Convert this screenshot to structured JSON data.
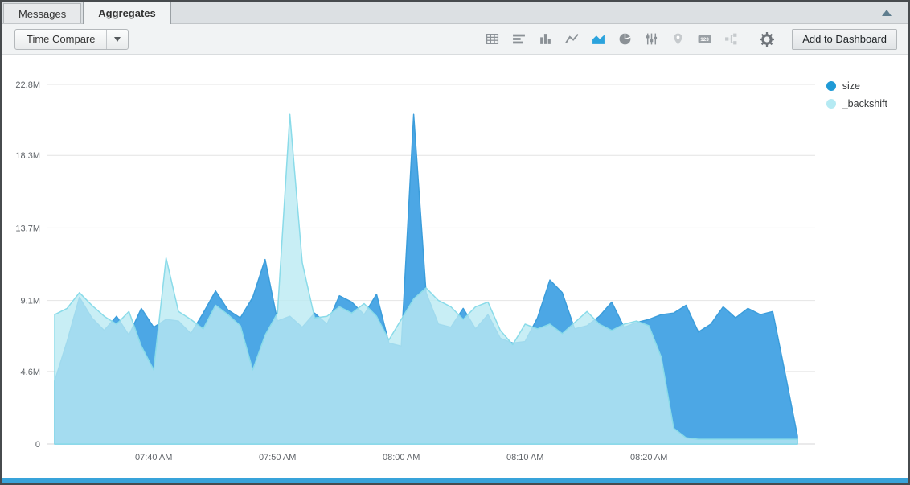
{
  "window": {
    "collapse_icon": "up-triangle"
  },
  "tabs": [
    {
      "label": "Messages",
      "active": false
    },
    {
      "label": "Aggregates",
      "active": true
    }
  ],
  "controls": {
    "time_compare_label": "Time Compare",
    "add_to_dashboard_label": "Add to Dashboard",
    "numeric_icon_label": "123"
  },
  "toolbar_icons": [
    {
      "name": "table-icon"
    },
    {
      "name": "horizontal-bar-chart-icon"
    },
    {
      "name": "column-chart-icon"
    },
    {
      "name": "line-chart-icon"
    },
    {
      "name": "area-chart-icon",
      "selected": true
    },
    {
      "name": "pie-chart-icon"
    },
    {
      "name": "sliders-icon"
    },
    {
      "name": "map-pin-icon",
      "disabled": true
    },
    {
      "name": "numeric-123-icon"
    },
    {
      "name": "flow-icon",
      "disabled": true
    },
    {
      "name": "settings-gear-icon"
    }
  ],
  "colors": {
    "accent_blue": "#2ba3dd",
    "scrollbar": "#38a3da",
    "grid_line": "#e4e4e4",
    "axis_text": "#61656a"
  },
  "chart_data": {
    "type": "area",
    "title": "",
    "unit": "millions",
    "grid": true,
    "legend_position": "top-right",
    "x_start_time": "07:32 AM",
    "x_step_minutes": 1,
    "x_tick_labels": [
      "07:40 AM",
      "07:50 AM",
      "08:00 AM",
      "08:10 AM",
      "08:20 AM"
    ],
    "x_tick_offsets": [
      8,
      18,
      28,
      38,
      48
    ],
    "y_tick_labels": [
      "0",
      "4.6M",
      "9.1M",
      "13.7M",
      "18.3M",
      "22.8M"
    ],
    "y_tick_values": [
      0,
      4.6,
      9.1,
      13.7,
      18.3,
      22.8
    ],
    "ylim": [
      0,
      22.8
    ],
    "series": [
      {
        "name": "size",
        "fill": "#4ca7e5",
        "stroke": "#3b9ddb",
        "dot_color": "#1f9ad6",
        "values": [
          4.0,
          6.5,
          9.3,
          8.0,
          7.2,
          8.1,
          6.9,
          8.6,
          7.4,
          7.9,
          7.8,
          7.0,
          8.3,
          9.7,
          8.5,
          8.0,
          9.3,
          11.7,
          7.8,
          8.1,
          7.4,
          8.3,
          7.6,
          9.4,
          9.0,
          8.2,
          9.5,
          6.4,
          6.2,
          20.9,
          9.6,
          7.6,
          7.4,
          8.6,
          7.3,
          8.2,
          6.7,
          6.4,
          6.5,
          8.0,
          10.4,
          9.6,
          7.3,
          7.5,
          8.1,
          9.0,
          7.4,
          7.7,
          7.9,
          8.2,
          8.3,
          8.8,
          7.1,
          7.6,
          8.7,
          8.0,
          8.6,
          8.2,
          8.4,
          4.5,
          0.5
        ]
      },
      {
        "name": "_backshift",
        "fill": "rgba(186,234,242,0.8)",
        "stroke": "#8adbe9",
        "dot_color": "#b5eaf3",
        "values": [
          8.2,
          8.6,
          9.6,
          8.8,
          8.1,
          7.6,
          8.4,
          6.2,
          4.7,
          11.8,
          8.4,
          7.9,
          7.3,
          8.8,
          8.2,
          7.5,
          4.7,
          6.9,
          8.3,
          20.9,
          11.5,
          8.0,
          8.1,
          8.7,
          8.3,
          8.9,
          8.1,
          6.6,
          7.9,
          9.2,
          9.9,
          9.1,
          8.7,
          7.9,
          8.7,
          9.0,
          7.2,
          6.3,
          7.6,
          7.3,
          7.6,
          7.0,
          7.7,
          8.4,
          7.6,
          7.2,
          7.6,
          7.8,
          7.5,
          5.5,
          1.0,
          0.4,
          0.3,
          0.3,
          0.3,
          0.3,
          0.3,
          0.3,
          0.3,
          0.3,
          0.3
        ]
      }
    ]
  }
}
